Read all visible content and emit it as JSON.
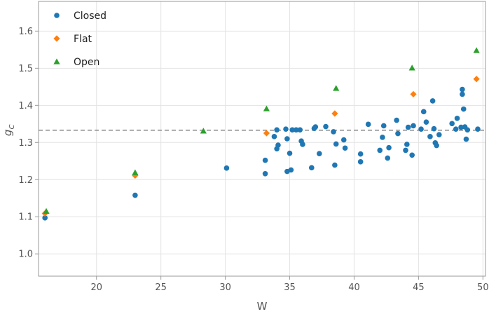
{
  "chart_data": {
    "type": "scatter",
    "xlabel": "W",
    "ylabel": "g",
    "ylabel_sub": "C",
    "xlim": [
      15.5,
      50.2
    ],
    "ylim": [
      0.94,
      1.68
    ],
    "xticks": [
      20,
      25,
      30,
      35,
      40,
      45,
      50
    ],
    "yticks": [
      1.0,
      1.1,
      1.2,
      1.3,
      1.4,
      1.5,
      1.6
    ],
    "xtick_labels": [
      "20",
      "25",
      "30",
      "35",
      "40",
      "45",
      "50"
    ],
    "ytick_labels": [
      "1.0",
      "1.1",
      "1.2",
      "1.3",
      "1.4",
      "1.5",
      "1.6"
    ],
    "grid": true,
    "reference_line": {
      "y": 1.333,
      "style": "dashed",
      "color": "#7f7f7f"
    },
    "legend_position": "top-left",
    "series": [
      {
        "name": "Closed",
        "marker": "circle",
        "color": "#1f77b4",
        "points": [
          [
            16,
            1.097
          ],
          [
            23,
            1.158
          ],
          [
            30.1,
            1.231
          ],
          [
            33.1,
            1.252
          ],
          [
            33.1,
            1.216
          ],
          [
            33.8,
            1.316
          ],
          [
            34.0,
            1.334
          ],
          [
            34.0,
            1.283
          ],
          [
            34.1,
            1.293
          ],
          [
            34.7,
            1.336
          ],
          [
            34.8,
            1.222
          ],
          [
            34.8,
            1.31
          ],
          [
            35.0,
            1.271
          ],
          [
            35.1,
            1.226
          ],
          [
            35.2,
            1.334
          ],
          [
            35.5,
            1.334
          ],
          [
            35.8,
            1.334
          ],
          [
            35.9,
            1.304
          ],
          [
            36.0,
            1.295
          ],
          [
            36.7,
            1.232
          ],
          [
            36.9,
            1.338
          ],
          [
            37.0,
            1.342
          ],
          [
            37.3,
            1.27
          ],
          [
            37.8,
            1.343
          ],
          [
            38.4,
            1.329
          ],
          [
            38.5,
            1.239
          ],
          [
            38.6,
            1.296
          ],
          [
            39.2,
            1.307
          ],
          [
            39.3,
            1.285
          ],
          [
            40.5,
            1.269
          ],
          [
            40.5,
            1.248
          ],
          [
            41.1,
            1.349
          ],
          [
            42.0,
            1.279
          ],
          [
            42.2,
            1.314
          ],
          [
            42.3,
            1.345
          ],
          [
            42.6,
            1.258
          ],
          [
            42.7,
            1.286
          ],
          [
            43.3,
            1.36
          ],
          [
            43.4,
            1.324
          ],
          [
            44.0,
            1.279
          ],
          [
            44.1,
            1.295
          ],
          [
            44.2,
            1.341
          ],
          [
            44.5,
            1.266
          ],
          [
            44.6,
            1.345
          ],
          [
            45.2,
            1.336
          ],
          [
            45.4,
            1.383
          ],
          [
            45.6,
            1.355
          ],
          [
            45.9,
            1.316
          ],
          [
            46.1,
            1.412
          ],
          [
            46.2,
            1.337
          ],
          [
            46.3,
            1.299
          ],
          [
            46.4,
            1.292
          ],
          [
            46.6,
            1.321
          ],
          [
            47.6,
            1.351
          ],
          [
            47.9,
            1.336
          ],
          [
            48.0,
            1.365
          ],
          [
            48.3,
            1.341
          ],
          [
            48.4,
            1.443
          ],
          [
            48.4,
            1.43
          ],
          [
            48.5,
            1.39
          ],
          [
            48.6,
            1.342
          ],
          [
            48.7,
            1.309
          ],
          [
            48.8,
            1.334
          ],
          [
            49.6,
            1.336
          ]
        ]
      },
      {
        "name": "Flat",
        "marker": "diamond",
        "color": "#ff7f0e",
        "points": [
          [
            16,
            1.109
          ],
          [
            23,
            1.211
          ],
          [
            33.2,
            1.325
          ],
          [
            38.5,
            1.378
          ],
          [
            44.6,
            1.43
          ],
          [
            49.5,
            1.471
          ]
        ]
      },
      {
        "name": "Open",
        "marker": "triangle",
        "color": "#2ca02c",
        "points": [
          [
            16.1,
            1.115
          ],
          [
            23,
            1.219
          ],
          [
            28.3,
            1.331
          ],
          [
            33.2,
            1.391
          ],
          [
            38.6,
            1.446
          ],
          [
            44.5,
            1.501
          ],
          [
            49.5,
            1.548
          ]
        ]
      }
    ]
  }
}
